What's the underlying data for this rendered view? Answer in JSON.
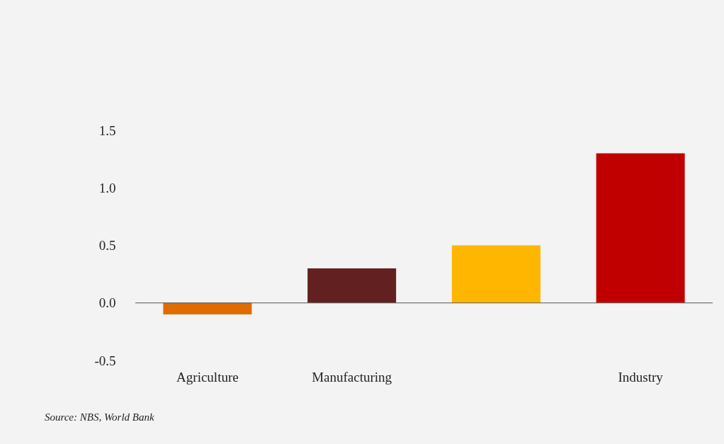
{
  "chart_data": {
    "type": "bar",
    "categories": [
      "Agriculture",
      "Manufacturing",
      null,
      "Industry"
    ],
    "values": [
      -0.1,
      0.3,
      0.5,
      1.3
    ],
    "colors": [
      "#e06c00",
      "#632020",
      "#ffb600",
      "#c00000"
    ],
    "ylim": [
      -0.5,
      1.5
    ],
    "yticks": [
      {
        "value": -0.5,
        "label": "-0.5"
      },
      {
        "value": 0,
        "label": "0.0"
      },
      {
        "value": 0.5,
        "label": "0.5"
      },
      {
        "value": 1,
        "label": "1.0"
      },
      {
        "value": 1.5,
        "label": "1.5"
      }
    ],
    "ref_lines": [
      {
        "axis": "y",
        "value": 0,
        "color": "#555555"
      }
    ],
    "annotations": [
      "Source: NBS, World Bank"
    ]
  }
}
